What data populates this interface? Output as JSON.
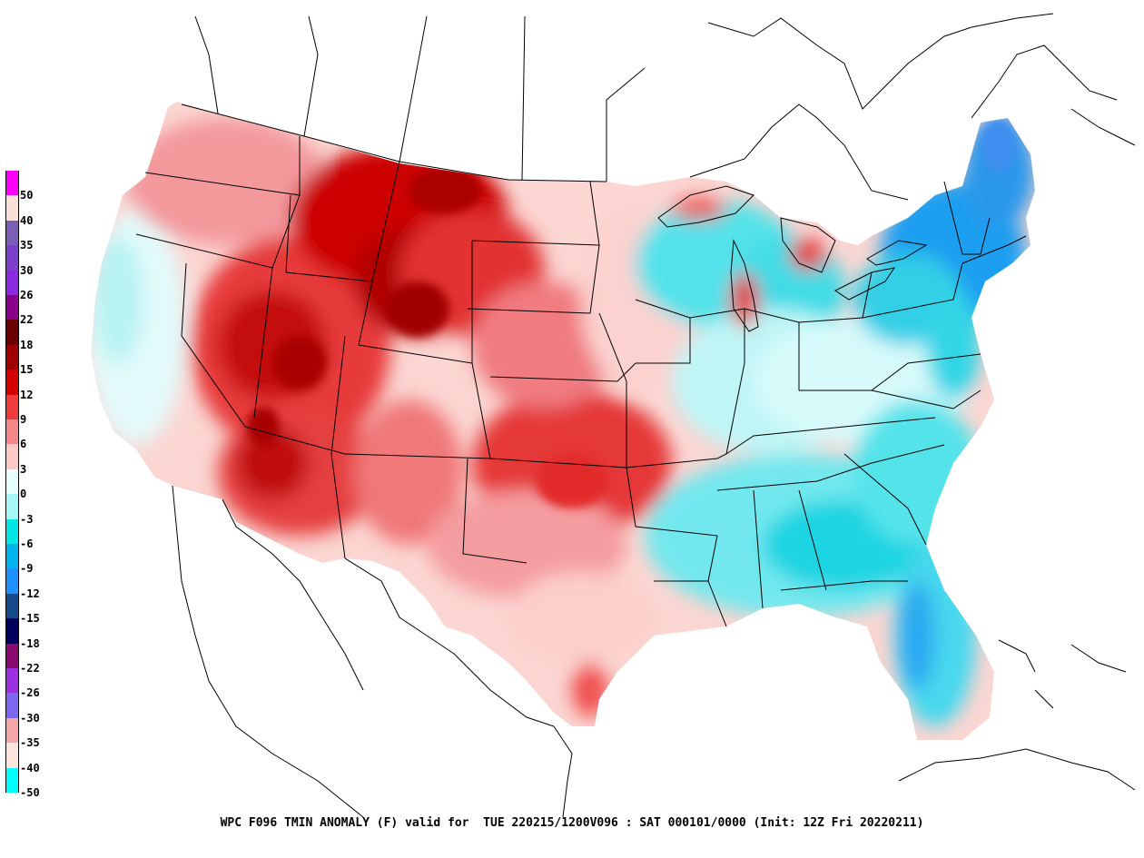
{
  "caption": "WPC F096 TMIN ANOMALY (F) valid for  TUE 220215/1200V096 : SAT 000101/0000 (Init: 12Z Fri 20220211)",
  "legend": {
    "labels": [
      "50",
      "40",
      "35",
      "30",
      "26",
      "22",
      "18",
      "15",
      "12",
      "9",
      "6",
      "3",
      "0",
      "-3",
      "-6",
      "-9",
      "-12",
      "-15",
      "-18",
      "-22",
      "-26",
      "-30",
      "-35",
      "-40",
      "-50"
    ],
    "colors": [
      "#ff00ff",
      "#fbe0da",
      "#7a5fb5",
      "#7b3fc9",
      "#8a2be2",
      "#8b008b",
      "#6b0000",
      "#a00000",
      "#d40000",
      "#ee3b3b",
      "#f4878a",
      "#fbc9c6",
      "#e6ffff",
      "#a6f6f6",
      "#00e5e5",
      "#00b2ee",
      "#1e90ff",
      "#174a8b",
      "#00005c",
      "#8b0a70",
      "#9a30e0",
      "#7b68ee",
      "#f4a6a8",
      "#fde4dc",
      "#00ffff"
    ]
  },
  "map": {
    "regions": [
      {
        "name": "northern-rockies-plains",
        "color": "#cc0000"
      },
      {
        "name": "great-basin-rockies",
        "color": "#e83434"
      },
      {
        "name": "southern-plains",
        "color": "#e53a3a"
      },
      {
        "name": "southeast",
        "color": "#7fe9ef"
      },
      {
        "name": "northeast",
        "color": "#1ca8ee"
      },
      {
        "name": "pacific-northwest",
        "color": "#f4a3a6"
      },
      {
        "name": "california-coast",
        "color": "#e6fbfb"
      }
    ]
  }
}
